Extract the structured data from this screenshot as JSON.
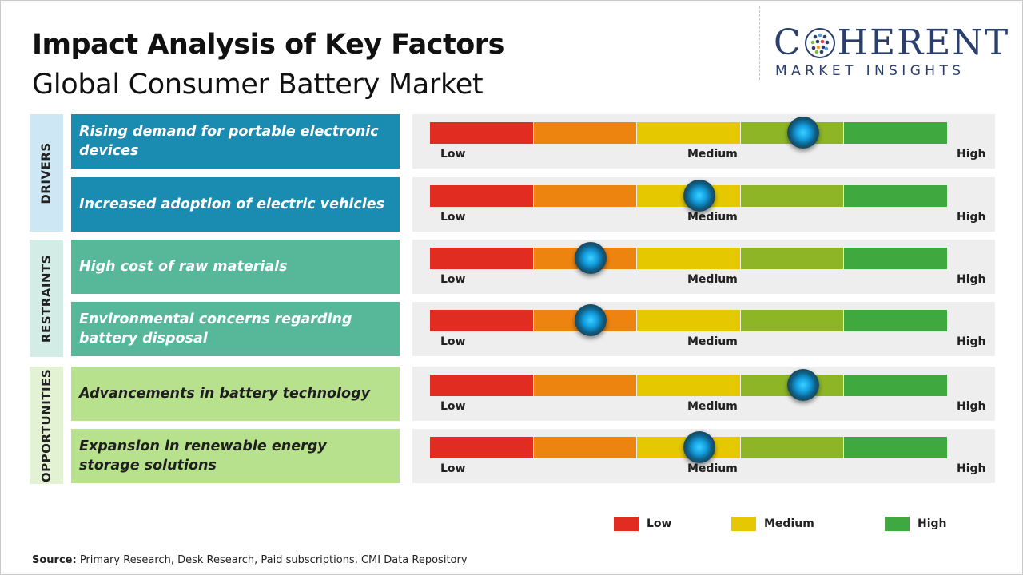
{
  "header": {
    "title": "Impact Analysis of Key Factors",
    "subtitle": "Global Consumer Battery Market"
  },
  "logo": {
    "wordmark_left": "C",
    "wordmark_right": "HERENT",
    "tagline": "MARKET INSIGHTS"
  },
  "groups": [
    {
      "label": "DRIVERS",
      "color": "#cde8f4"
    },
    {
      "label": "RESTRAINTS",
      "color": "#d3ede6"
    },
    {
      "label": "OPPORTUNITIES",
      "color": "#e3f2d3"
    }
  ],
  "chart_data": {
    "type": "table",
    "scale_labels": [
      "Low",
      "Medium",
      "High"
    ],
    "segment_colors": [
      "#e02c21",
      "#ee8410",
      "#e5c800",
      "#8db526",
      "#3fa83f"
    ],
    "rows": [
      {
        "group": "DRIVERS",
        "factor": "Rising demand for portable electronic devices",
        "impact": 0.72,
        "color": "#1a8cb2",
        "text_color": "#ffffff"
      },
      {
        "group": "DRIVERS",
        "factor": "Increased adoption of electric vehicles",
        "impact": 0.52,
        "color": "#1a8cb2",
        "text_color": "#ffffff"
      },
      {
        "group": "RESTRAINTS",
        "factor": "High cost of raw materials",
        "impact": 0.31,
        "color": "#56b899",
        "text_color": "#ffffff"
      },
      {
        "group": "RESTRAINTS",
        "factor": "Environmental concerns regarding battery disposal",
        "impact": 0.31,
        "color": "#56b899",
        "text_color": "#ffffff"
      },
      {
        "group": "OPPORTUNITIES",
        "factor": "Advancements in battery technology",
        "impact": 0.72,
        "color": "#b7e18c",
        "text_color": "#1f1f1f"
      },
      {
        "group": "OPPORTUNITIES",
        "factor": "Expansion in renewable energy storage solutions",
        "impact": 0.52,
        "color": "#b7e18c",
        "text_color": "#1f1f1f"
      }
    ],
    "legend": [
      {
        "label": "Low",
        "color": "#e02c21"
      },
      {
        "label": "Medium",
        "color": "#e5c800"
      },
      {
        "label": "High",
        "color": "#3fa83f"
      }
    ]
  },
  "footer": {
    "source_label": "Source:",
    "source_text": " Primary Research, Desk Research, Paid subscriptions, CMI Data Repository"
  }
}
